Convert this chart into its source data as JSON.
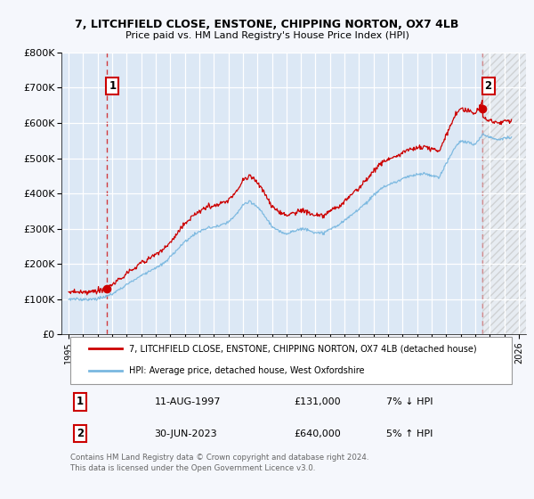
{
  "title1": "7, LITCHFIELD CLOSE, ENSTONE, CHIPPING NORTON, OX7 4LB",
  "title2": "Price paid vs. HM Land Registry's House Price Index (HPI)",
  "background_color": "#f5f7fc",
  "plot_bg_color": "#dce8f5",
  "grid_color": "#ffffff",
  "hpi_color": "#7ab8e0",
  "price_color": "#cc0000",
  "annotation_box_color": "#cc0000",
  "sale1_date_num": 1997.62,
  "sale1_price": 131000,
  "sale1_label": "1",
  "sale1_date_str": "11-AUG-1997",
  "sale1_price_str": "£131,000",
  "sale1_hpi_str": "7% ↓ HPI",
  "sale2_date_num": 2023.5,
  "sale2_price": 640000,
  "sale2_label": "2",
  "sale2_date_str": "30-JUN-2023",
  "sale2_price_str": "£640,000",
  "sale2_hpi_str": "5% ↑ HPI",
  "legend_line1": "7, LITCHFIELD CLOSE, ENSTONE, CHIPPING NORTON, OX7 4LB (detached house)",
  "legend_line2": "HPI: Average price, detached house, West Oxfordshire",
  "footer": "Contains HM Land Registry data © Crown copyright and database right 2024.\nThis data is licensed under the Open Government Licence v3.0.",
  "xmin": 1994.5,
  "xmax": 2026.5,
  "ymin": 0,
  "ymax": 800000,
  "hpi_knots_x": [
    1995.0,
    1995.5,
    1996.0,
    1996.5,
    1997.0,
    1997.5,
    1998.0,
    1998.5,
    1999.0,
    1999.5,
    2000.0,
    2000.5,
    2001.0,
    2001.5,
    2002.0,
    2002.5,
    2003.0,
    2003.5,
    2004.0,
    2004.5,
    2005.0,
    2005.5,
    2006.0,
    2006.5,
    2007.0,
    2007.5,
    2008.0,
    2008.5,
    2009.0,
    2009.5,
    2010.0,
    2010.5,
    2011.0,
    2011.5,
    2012.0,
    2012.5,
    2013.0,
    2013.5,
    2014.0,
    2014.5,
    2015.0,
    2015.5,
    2016.0,
    2016.5,
    2017.0,
    2017.5,
    2018.0,
    2018.5,
    2019.0,
    2019.5,
    2020.0,
    2020.5,
    2021.0,
    2021.5,
    2022.0,
    2022.5,
    2023.0,
    2023.5,
    2024.0,
    2024.5,
    2025.0,
    2026.0
  ],
  "hpi_knots_y": [
    100000,
    100500,
    101000,
    102000,
    104000,
    108000,
    118000,
    130000,
    143000,
    155000,
    167000,
    178000,
    189000,
    203000,
    222000,
    245000,
    265000,
    282000,
    295000,
    305000,
    308000,
    312000,
    322000,
    340000,
    370000,
    380000,
    365000,
    340000,
    310000,
    295000,
    292000,
    298000,
    305000,
    305000,
    295000,
    295000,
    305000,
    318000,
    333000,
    348000,
    368000,
    385000,
    405000,
    425000,
    435000,
    445000,
    455000,
    462000,
    468000,
    472000,
    465000,
    458000,
    495000,
    535000,
    560000,
    555000,
    548000,
    578000,
    570000,
    565000,
    570000,
    575000
  ]
}
